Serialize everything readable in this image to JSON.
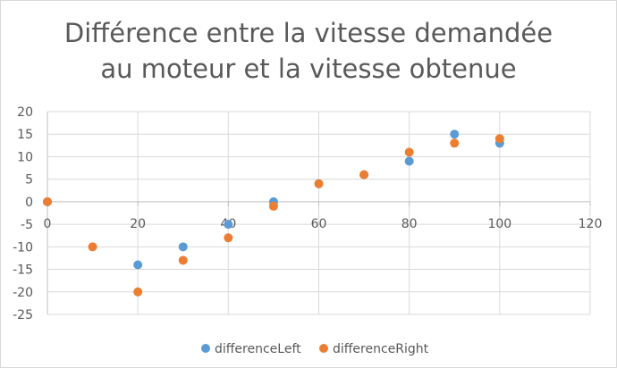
{
  "chart_data": {
    "type": "scatter",
    "title_lines": [
      "Différence entre la vitesse demandée",
      "au moteur et la vitesse obtenue"
    ],
    "xlim": [
      0,
      120
    ],
    "ylim": [
      -25,
      20
    ],
    "x_ticks": [
      0,
      20,
      40,
      60,
      80,
      100,
      120
    ],
    "y_ticks": [
      20,
      15,
      10,
      5,
      0,
      -5,
      -10,
      -15,
      -20,
      -25
    ],
    "grid": true,
    "legend_position": "bottom",
    "series": [
      {
        "name": "differenceLeft",
        "color": "#5B9BD5",
        "points": [
          [
            0,
            0
          ],
          [
            20,
            -14
          ],
          [
            30,
            -10
          ],
          [
            40,
            -5
          ],
          [
            50,
            0
          ],
          [
            60,
            4
          ],
          [
            70,
            6
          ],
          [
            80,
            9
          ],
          [
            90,
            15
          ],
          [
            100,
            13
          ]
        ]
      },
      {
        "name": "differenceRight",
        "color": "#ED7D31",
        "points": [
          [
            0,
            0
          ],
          [
            10,
            -10
          ],
          [
            20,
            -20
          ],
          [
            30,
            -13
          ],
          [
            40,
            -8
          ],
          [
            50,
            -1
          ],
          [
            60,
            4
          ],
          [
            70,
            6
          ],
          [
            80,
            11
          ],
          [
            90,
            13
          ],
          [
            100,
            14
          ]
        ]
      }
    ]
  }
}
